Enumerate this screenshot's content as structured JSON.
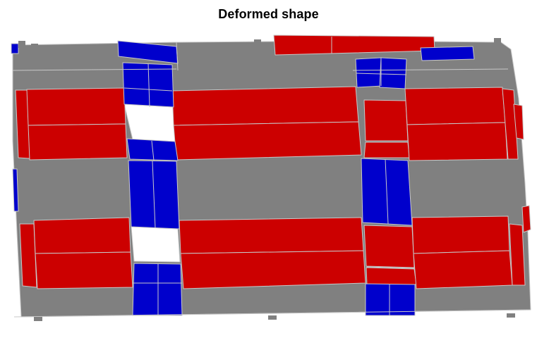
{
  "figure": {
    "title": "Deformed shape"
  },
  "colors": {
    "background": "#ffffff",
    "concrete_gray": "#808080",
    "red_elements": "#cc0000",
    "blue_elements": "#0000cc",
    "mesh_lines": "#c8c8c8"
  }
}
